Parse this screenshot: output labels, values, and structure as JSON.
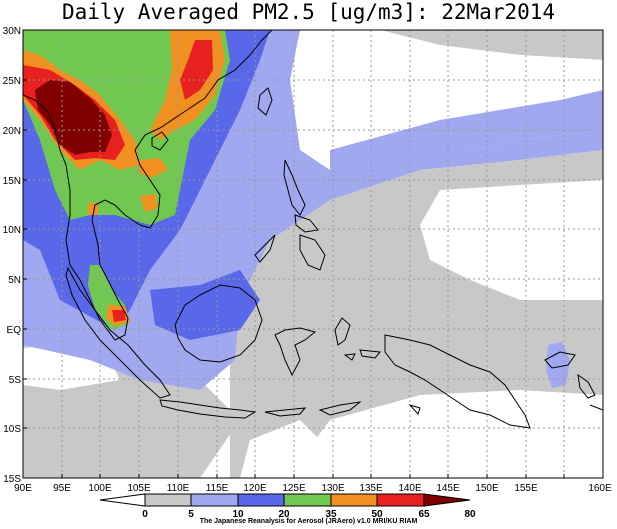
{
  "title": "Daily Averaged PM2.5 [ug/m3]: 22Mar2014",
  "credit": "The Japanese Reanalysis for Aerosol (JRAero) v1.0 MRI/KU RIAM",
  "lon_labels": [
    "90E",
    "95E",
    "100E",
    "105E",
    "110E",
    "115E",
    "120E",
    "125E",
    "130E",
    "135E",
    "140E",
    "145E",
    "150E",
    "155E",
    "160E"
  ],
  "lat_labels": [
    "30N",
    "25N",
    "20N",
    "15N",
    "10N",
    "5N",
    "EQ",
    "5S",
    "10S",
    "15S"
  ],
  "colorbar": {
    "ticks": [
      "0",
      "5",
      "10",
      "20",
      "35",
      "50",
      "65",
      "80"
    ],
    "bins": [
      {
        "range": "0-5",
        "color": "#ffffff"
      },
      {
        "range": "5-10",
        "color": "#c8c8c8"
      },
      {
        "range": "10-20",
        "color": "#a0a8f0"
      },
      {
        "range": "20-35",
        "color": "#5868e8"
      },
      {
        "range": "35-50",
        "color": "#70c850"
      },
      {
        "range": "50-65",
        "color": "#f09020"
      },
      {
        "range": "65-80",
        "color": "#e82020"
      },
      {
        "range": ">80",
        "color": "#800000"
      }
    ]
  }
}
